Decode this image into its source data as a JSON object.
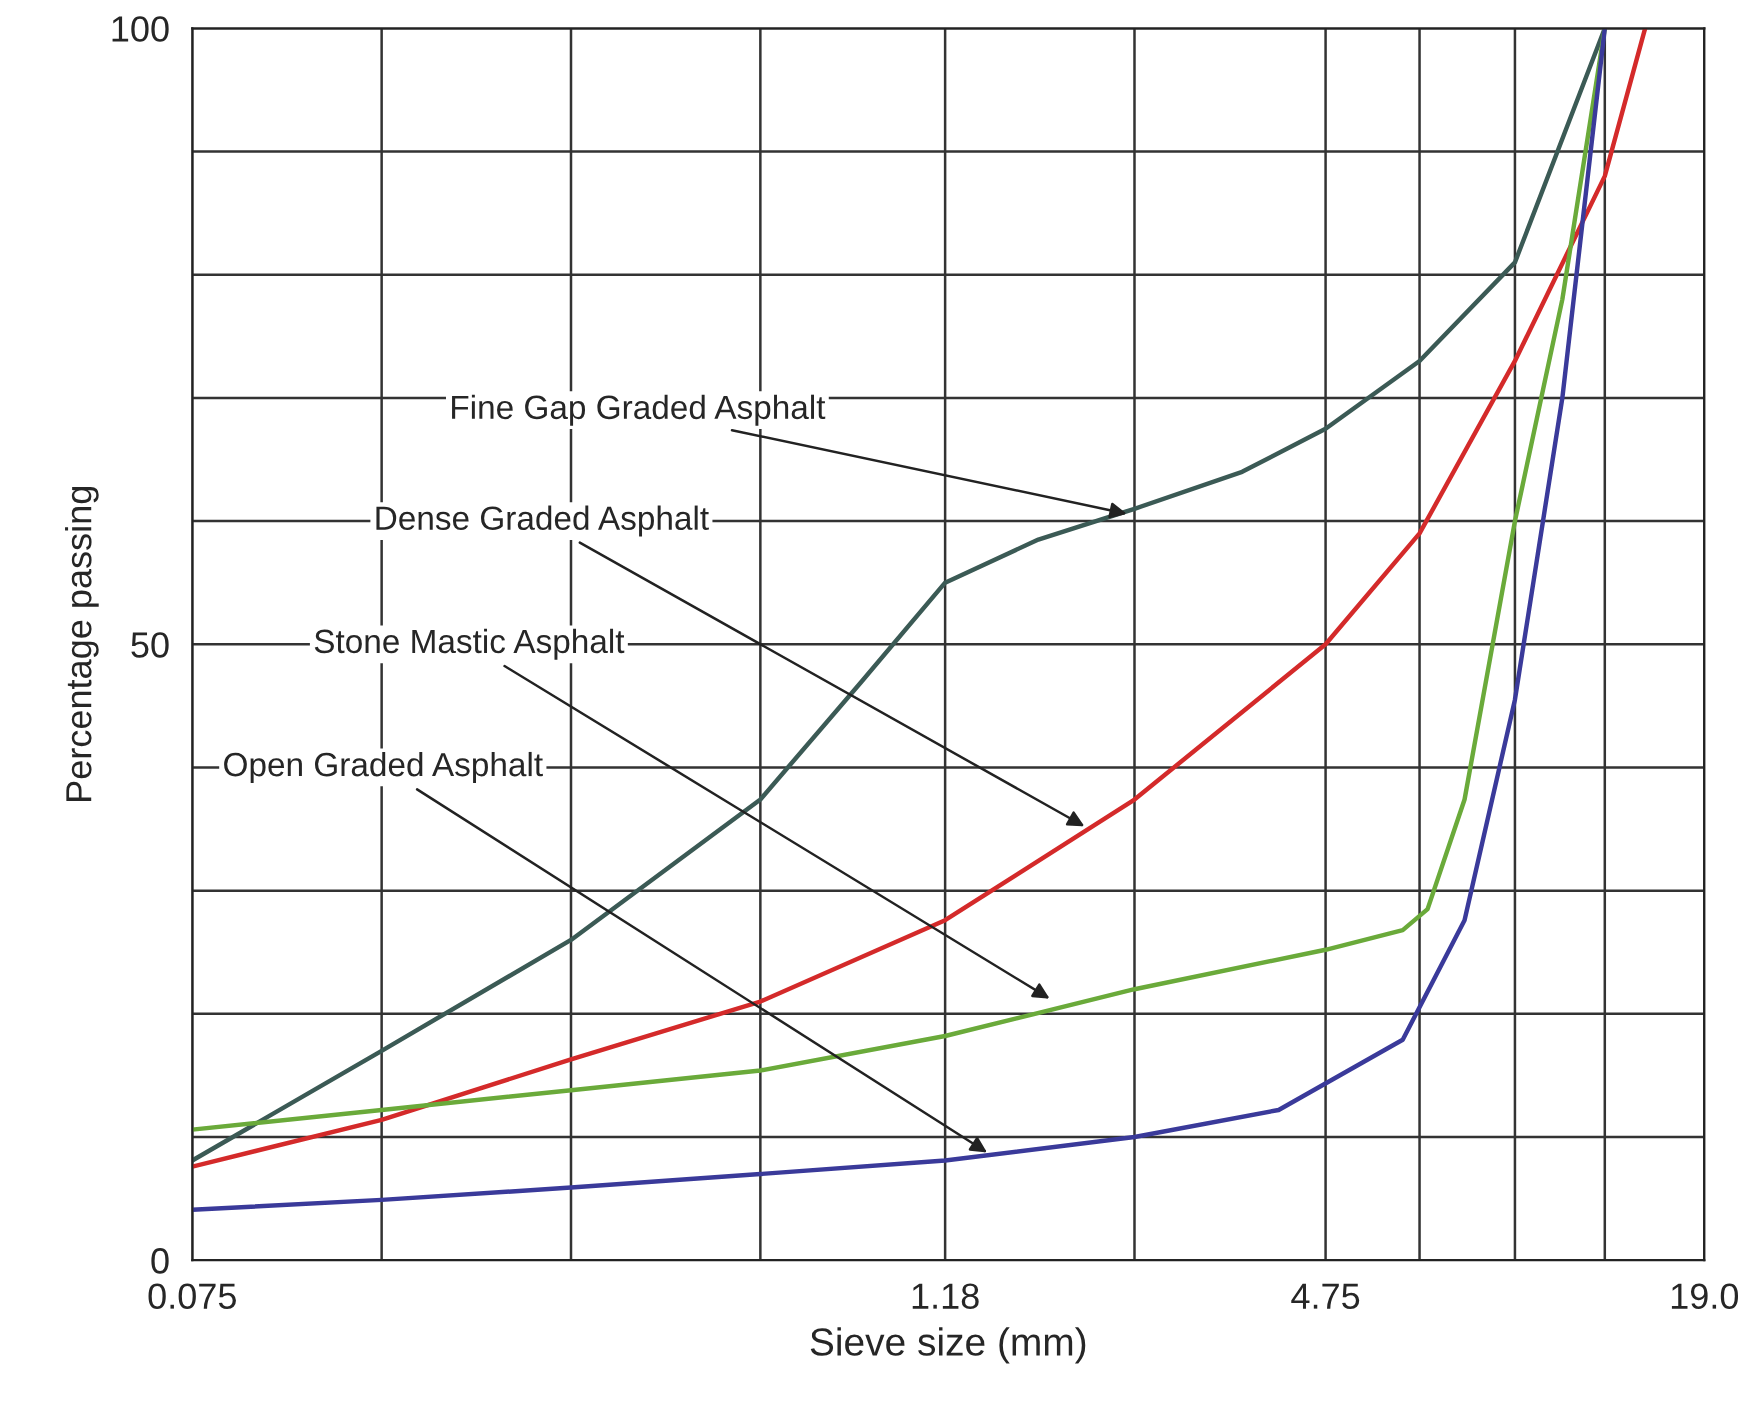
{
  "chart_data": {
    "type": "line",
    "xlabel": "Sieve size (mm)",
    "ylabel": "Percentage passing",
    "log": "x",
    "xlim": [
      0.075,
      19.0
    ],
    "ylim": [
      0,
      100
    ],
    "xticks": [
      0.075,
      {
        "value": 0.15,
        "label": null
      },
      {
        "value": 0.3,
        "label": null
      },
      {
        "value": 0.6,
        "label": null
      },
      1.18,
      {
        "value": 2.36,
        "label": null
      },
      4.75,
      {
        "value": 6.7,
        "label": null
      },
      {
        "value": 9.5,
        "label": null
      },
      {
        "value": 13.2,
        "label": null
      },
      {
        "value": 19.0,
        "label": "19.0"
      }
    ],
    "yticks": [
      0,
      {
        "value": 10,
        "label": null
      },
      {
        "value": 20,
        "label": null
      },
      {
        "value": 30,
        "label": null
      },
      {
        "value": 40,
        "label": null
      },
      50,
      {
        "value": 60,
        "label": null
      },
      {
        "value": 70,
        "label": null
      },
      {
        "value": 80,
        "label": null
      },
      {
        "value": 90,
        "label": null
      },
      100
    ],
    "grid": true,
    "marker": "none",
    "line_style": "solid",
    "legend": false,
    "series": [
      {
        "color": "#3b5a55",
        "x": [
          0.075,
          0.15,
          0.3,
          0.6,
          0.87,
          1.18,
          1.66,
          2.36,
          3.5,
          4.75,
          6.7,
          9.5,
          13.2
        ],
        "values": [
          8.1,
          17,
          26,
          37.4,
          47,
          55,
          58.5,
          61,
          64,
          67.5,
          73,
          81,
          100
        ]
      },
      {
        "color": "#d42a2a",
        "x": [
          0.075,
          0.15,
          0.3,
          0.6,
          1.18,
          2.36,
          4.75,
          6.7,
          9.5,
          13.2,
          15.3
        ],
        "values": [
          7.6,
          11.4,
          16.3,
          21,
          27.6,
          37.4,
          50,
          59,
          73,
          88,
          100
        ]
      },
      {
        "color": "#6aaa3a",
        "x": [
          0.075,
          0.15,
          0.3,
          0.6,
          1.18,
          2.36,
          4.75,
          6.3,
          6.9,
          7.9,
          9.5,
          11.3,
          13.2
        ],
        "values": [
          10.6,
          12.2,
          13.8,
          15.4,
          18.2,
          22,
          25.2,
          26.8,
          28.5,
          37.4,
          60,
          78,
          100
        ]
      },
      {
        "color": "#3a3a9a",
        "x": [
          0.075,
          0.15,
          0.3,
          0.6,
          1.18,
          2.36,
          4.0,
          6.3,
          7.9,
          9.5,
          11.3,
          13.2
        ],
        "values": [
          4.1,
          4.9,
          5.9,
          7,
          8.1,
          10,
          12.2,
          17.9,
          27.6,
          45.5,
          70,
          100
        ]
      }
    ],
    "annotations": [
      {
        "text": "Fine Gap Graded Asphalt",
        "x": 2.34,
        "y": 60.5
      },
      {
        "text": "Dense Graded Asphalt",
        "x": 2.0,
        "y": 35
      },
      {
        "text": "Stone Mastic Asphalt",
        "x": 1.76,
        "y": 21
      },
      {
        "text": "Open Graded Asphalt",
        "x": 1.4,
        "y": 8.5
      }
    ]
  }
}
